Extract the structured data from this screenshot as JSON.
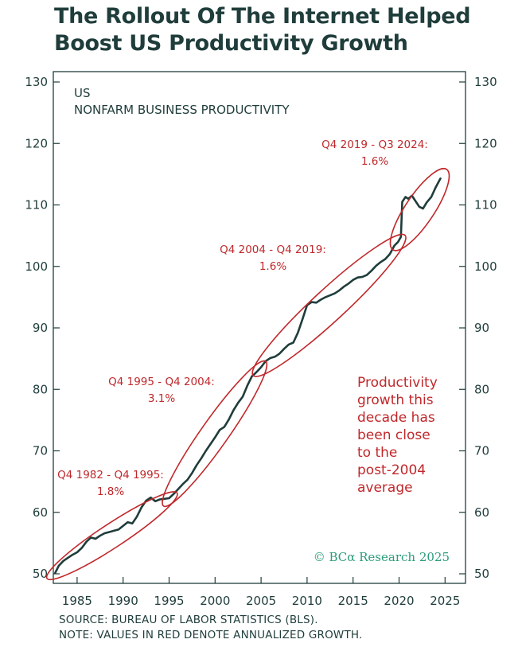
{
  "title": {
    "line1": "The Rollout Of The Internet Helped",
    "line2": "Boost US Productivity Growth"
  },
  "colors": {
    "line": "#1f3d3b",
    "annotation": "#c0282b",
    "axis": "#1f3d3b",
    "watermark": "#2a9d7a"
  },
  "chart_data": {
    "type": "line",
    "title": "US",
    "subtitle": "NONFARM BUSINESS PRODUCTIVITY",
    "xlabel": "",
    "ylabel": "",
    "xlim": [
      1982.5,
      2025.8
    ],
    "ylim": [
      50,
      130
    ],
    "x_ticks": [
      1985,
      1990,
      1995,
      2000,
      2005,
      2010,
      2015,
      2020,
      2025
    ],
    "y_ticks": [
      50,
      60,
      70,
      80,
      90,
      100,
      110,
      120,
      130
    ],
    "grid": false,
    "series": [
      {
        "name": "Nonfarm business productivity",
        "points": [
          [
            1982.6,
            50.1
          ],
          [
            1983.0,
            51.3
          ],
          [
            1983.5,
            52.1
          ],
          [
            1984.0,
            52.6
          ],
          [
            1984.5,
            53.1
          ],
          [
            1985.0,
            53.5
          ],
          [
            1985.5,
            54.2
          ],
          [
            1986.0,
            55.2
          ],
          [
            1986.5,
            55.9
          ],
          [
            1987.0,
            55.7
          ],
          [
            1987.5,
            56.2
          ],
          [
            1988.0,
            56.6
          ],
          [
            1988.5,
            56.8
          ],
          [
            1989.0,
            57.0
          ],
          [
            1989.5,
            57.2
          ],
          [
            1990.0,
            57.8
          ],
          [
            1990.5,
            58.4
          ],
          [
            1991.0,
            58.2
          ],
          [
            1991.5,
            59.3
          ],
          [
            1992.0,
            60.8
          ],
          [
            1992.5,
            61.9
          ],
          [
            1993.0,
            62.4
          ],
          [
            1993.5,
            61.8
          ],
          [
            1994.0,
            62.1
          ],
          [
            1994.5,
            62.2
          ],
          [
            1995.0,
            62.3
          ],
          [
            1995.5,
            63.0
          ],
          [
            1996.0,
            63.8
          ],
          [
            1996.5,
            64.6
          ],
          [
            1997.0,
            65.3
          ],
          [
            1997.5,
            66.4
          ],
          [
            1998.0,
            67.7
          ],
          [
            1998.5,
            68.8
          ],
          [
            1999.0,
            70.0
          ],
          [
            1999.5,
            71.1
          ],
          [
            2000.0,
            72.2
          ],
          [
            2000.5,
            73.4
          ],
          [
            2001.0,
            73.9
          ],
          [
            2001.5,
            75.1
          ],
          [
            2002.0,
            76.6
          ],
          [
            2002.5,
            77.8
          ],
          [
            2003.0,
            78.8
          ],
          [
            2003.5,
            80.6
          ],
          [
            2004.0,
            82.1
          ],
          [
            2004.5,
            82.8
          ],
          [
            2005.0,
            83.6
          ],
          [
            2005.5,
            84.6
          ],
          [
            2006.0,
            85.1
          ],
          [
            2006.5,
            85.3
          ],
          [
            2007.0,
            85.8
          ],
          [
            2007.5,
            86.6
          ],
          [
            2008.0,
            87.3
          ],
          [
            2008.5,
            87.6
          ],
          [
            2009.0,
            89.2
          ],
          [
            2009.5,
            91.4
          ],
          [
            2010.0,
            93.7
          ],
          [
            2010.5,
            94.2
          ],
          [
            2011.0,
            94.1
          ],
          [
            2011.5,
            94.6
          ],
          [
            2012.0,
            95.0
          ],
          [
            2012.5,
            95.3
          ],
          [
            2013.0,
            95.6
          ],
          [
            2013.5,
            96.1
          ],
          [
            2014.0,
            96.7
          ],
          [
            2014.5,
            97.2
          ],
          [
            2015.0,
            97.8
          ],
          [
            2015.5,
            98.2
          ],
          [
            2016.0,
            98.3
          ],
          [
            2016.5,
            98.6
          ],
          [
            2017.0,
            99.3
          ],
          [
            2017.5,
            100.1
          ],
          [
            2018.0,
            100.7
          ],
          [
            2018.5,
            101.2
          ],
          [
            2019.0,
            102.0
          ],
          [
            2019.5,
            103.4
          ],
          [
            2019.9,
            104.0
          ],
          [
            2020.2,
            104.8
          ],
          [
            2020.35,
            110.5
          ],
          [
            2020.7,
            111.3
          ],
          [
            2021.0,
            111.0
          ],
          [
            2021.4,
            111.5
          ],
          [
            2021.8,
            110.6
          ],
          [
            2022.2,
            109.7
          ],
          [
            2022.6,
            109.4
          ],
          [
            2023.0,
            110.4
          ],
          [
            2023.5,
            111.3
          ],
          [
            2024.0,
            112.9
          ],
          [
            2024.5,
            114.3
          ]
        ]
      }
    ],
    "annotations": [
      {
        "label": "Q4 1982 - Q4 1995:",
        "value": "1.8%"
      },
      {
        "label": "Q4 1995 - Q4 2004:",
        "value": "3.1%"
      },
      {
        "label": "Q4 2004 - Q4 2019:",
        "value": "1.6%"
      },
      {
        "label": "Q4 2019 - Q3 2024:",
        "value": "1.6%"
      }
    ],
    "note_lines": [
      "Productivity",
      "growth this",
      "decade has",
      "been close",
      "to the",
      "post-2004",
      "average"
    ],
    "watermark": "© BCα Research 2025"
  },
  "footer": {
    "source": "SOURCE: BUREAU OF LABOR STATISTICS (BLS).",
    "note": "NOTE: VALUES IN RED DENOTE ANNUALIZED GROWTH."
  }
}
